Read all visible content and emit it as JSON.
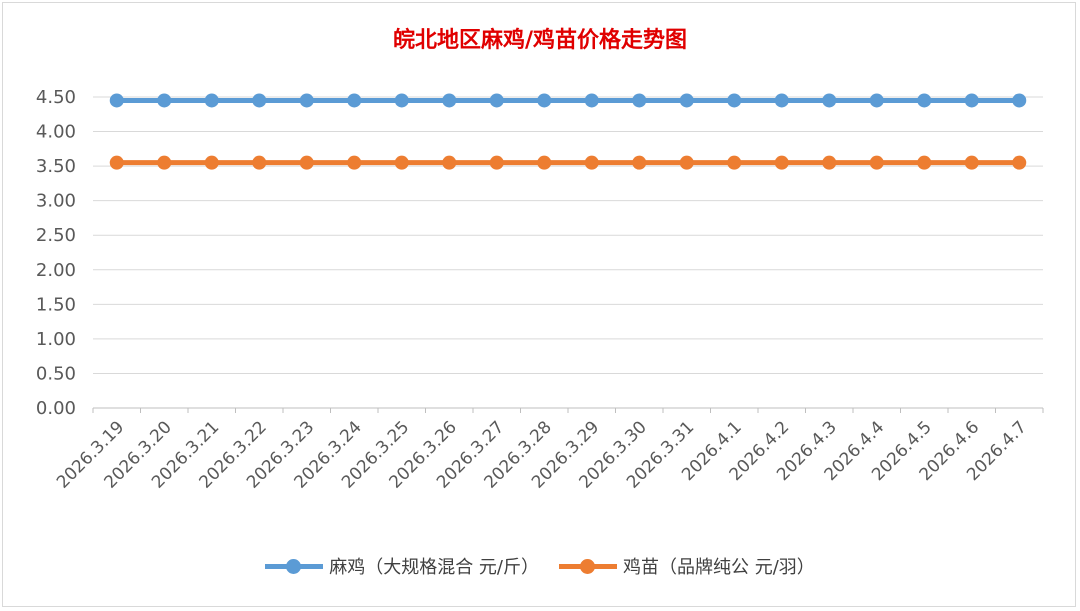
{
  "chart_data": {
    "type": "line",
    "title": "皖北地区麻鸡/鸡苗价格走势图",
    "categories": [
      "2026.3.19",
      "2026.3.20",
      "2026.3.21",
      "2026.3.22",
      "2026.3.23",
      "2026.3.24",
      "2026.3.25",
      "2026.3.26",
      "2026.3.27",
      "2026.3.28",
      "2026.3.29",
      "2026.3.30",
      "2026.3.31",
      "2026.4.1",
      "2026.4.2",
      "2026.4.3",
      "2026.4.4",
      "2026.4.5",
      "2026.4.6",
      "2026.4.7"
    ],
    "series": [
      {
        "name": "麻鸡（大规格混合 元/斤）",
        "color": "#5b9bd5",
        "values": [
          4.45,
          4.45,
          4.45,
          4.45,
          4.45,
          4.45,
          4.45,
          4.45,
          4.45,
          4.45,
          4.45,
          4.45,
          4.45,
          4.45,
          4.45,
          4.45,
          4.45,
          4.45,
          4.45,
          4.45
        ]
      },
      {
        "name": "鸡苗（品牌纯公 元/羽）",
        "color": "#ed7d31",
        "values": [
          3.55,
          3.55,
          3.55,
          3.55,
          3.55,
          3.55,
          3.55,
          3.55,
          3.55,
          3.55,
          3.55,
          3.55,
          3.55,
          3.55,
          3.55,
          3.55,
          3.55,
          3.55,
          3.55,
          3.55
        ]
      }
    ],
    "yticks": [
      "0.00",
      "0.50",
      "1.00",
      "1.50",
      "2.00",
      "2.50",
      "3.00",
      "3.50",
      "4.00",
      "4.50"
    ],
    "ylim": [
      0,
      4.5
    ],
    "grid": true,
    "legend": "bottom"
  }
}
